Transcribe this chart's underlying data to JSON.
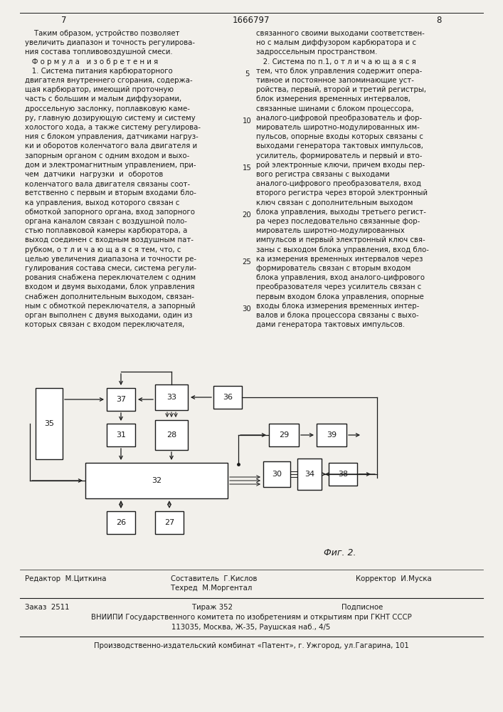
{
  "page_num_left": "7",
  "page_num_center": "1666797",
  "page_num_right": "8",
  "background_color": "#f2f0eb",
  "text_color": "#1a1a1a",
  "left_col_lines": [
    "    Таким образом, устройство позволяет",
    "увеличить диапазон и точность регулирова-",
    "ния состава топливовоздушной смеси.",
    "   Ф о р м у л а   и з о б р е т е н и я",
    "   1. Система питания карбюраторного",
    "двигателя внутреннего сгорания, содержа-",
    "щая карбюратор, имеющий проточную",
    "часть с большим и малым диффузорами,",
    "дроссельную заслонку, поплавковую каме-",
    "ру, главную дозирующую систему и систему",
    "холостого хода, а также систему регулирова-",
    "ния с блоком управления, датчиками нагруз-",
    "ки и оборотов коленчатого вала двигателя и",
    "запорным органом с одним входом и выхо-",
    "дом и электромагнитным управлением, при-",
    "чем  датчики  нагрузки  и  оборотов",
    "коленчатого вала двигателя связаны соот-",
    "ветственно с первым и вторым входами бло-",
    "ка управления, выход которого связан с",
    "обмоткой запорного органа, вход запорного",
    "органа каналом связан с воздушной поло-",
    "стью поплавковой камеры карбюратора, а",
    "выход соединен с входным воздушным пат-",
    "рубком, о т л и ч а ю щ а я с я тем, что, с",
    "целью увеличения диапазона и точности ре-",
    "гулирования состава смеси, система регули-",
    "рования снабжена переключателем с одним",
    "входом и двумя выходами, блок управления",
    "снабжен дополнительным выходом, связан-",
    "ным с обмоткой переключателя, а запорный",
    "орган выполнен с двумя выходами, один из",
    "которых связан с входом переключателя,"
  ],
  "right_col_lines": [
    "связанного своими выходами соответствен-",
    "но с малым диффузором карбюратора и с",
    "задроссельным пространством.",
    "   2. Система по п.1, о т л и ч а ю щ а я с я",
    "тем, что блок управления содержит опера-",
    "тивное и постоянное запоминающие уст-",
    "ройства, первый, второй и третий регистры,",
    "блок измерения временных интервалов,",
    "связанные шинами с блоком процессора,",
    "аналого-цифровой преобразователь и фор-",
    "мирователь широтно-модулированных им-",
    "пульсов, опорные входы которых связаны с",
    "выходами генератора тактовых импульсов,",
    "усилитель, формирователь и первый и вто-",
    "рой электронные ключи, причем входы пер-",
    "вого регистра связаны с выходами",
    "аналого-цифрового преобразователя, вход",
    "второго регистра через второй электронный",
    "ключ связан с дополнительным выходом",
    "блока управления, выходы третьего регист-",
    "ра через последовательно связанные фор-",
    "мирователь широтно-модулированных",
    "импульсов и первый электронный ключ свя-",
    "заны с выходом блока управления, вход бло-",
    "ка измерения временных интервалов через",
    "формирователь связан с вторым входом",
    "блока управления, вход аналого-цифрового",
    "преобразователя через усилитель связан с",
    "первым входом блока управления, опорные",
    "входы блока измерения временных интер-",
    "валов и блока процессора связаны с выхо-",
    "дами генератора тактовых импульсов."
  ],
  "fig_label": "Фиг. 2.",
  "editor": "Редактор  М.Циткина",
  "composer": "Составитель  Г.Кислов",
  "techred": "Техред  М.Моргентал",
  "corrector": "Корректор  И.Муска",
  "order": "Заказ  2511",
  "tirazh": "Тираж 352",
  "podpisnoe": "Подписное",
  "vnipi": "ВНИИПИ Государственного комитета по изобретениям и открытиям при ГКНТ СССР",
  "address": "113035, Москва, Ж-35, Раушская наб., 4/5",
  "patent_plant": "Производственно-издательский комбинат «Патент», г. Ужгород, ул.Гагарина, 101"
}
